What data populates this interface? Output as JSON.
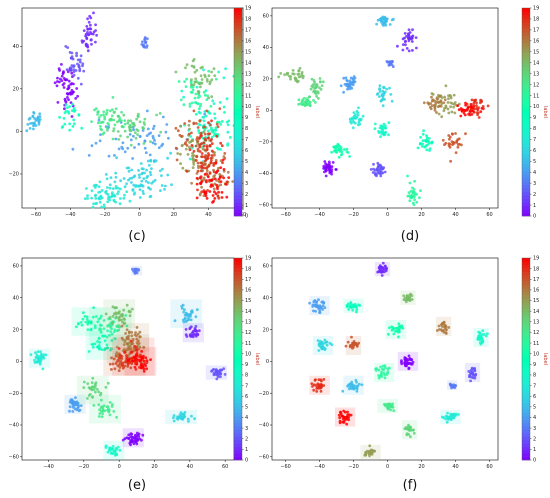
{
  "figure": {
    "colorbar_label": "label",
    "colormap": "rainbow",
    "colorbar_ticks": [
      0,
      1,
      2,
      3,
      4,
      5,
      6,
      7,
      8,
      9,
      10,
      11,
      12,
      13,
      14,
      15,
      16,
      17,
      18,
      19
    ],
    "captions": [
      "(c)",
      "(d)",
      "(e)",
      "(f)"
    ]
  },
  "chart_data": [
    {
      "type": "scatter",
      "panel": "c",
      "title": "",
      "xlabel": "",
      "ylabel": "",
      "xticks": [
        -60,
        -40,
        -20,
        0,
        20,
        40,
        60
      ],
      "yticks": [
        -20,
        0,
        20,
        40
      ],
      "xlim": [
        -68,
        60
      ],
      "ylim": [
        -36,
        58
      ],
      "colorbar": {
        "label": "label",
        "min": 0,
        "max": 19
      },
      "grid": false,
      "clusters": [
        {
          "label": 0,
          "x": -42,
          "y": 22,
          "sx": 3,
          "sy": 6,
          "n": 60
        },
        {
          "label": 1,
          "x": -30,
          "y": 45,
          "sx": 2,
          "sy": 4,
          "n": 40
        },
        {
          "label": 2,
          "x": -38,
          "y": 32,
          "sx": 3,
          "sy": 4,
          "n": 35
        },
        {
          "label": 3,
          "x": 3,
          "y": 42,
          "sx": 1.5,
          "sy": 1.5,
          "n": 15
        },
        {
          "label": 4,
          "x": 0,
          "y": -4,
          "sx": 14,
          "sy": 5,
          "n": 60
        },
        {
          "label": 5,
          "x": -60,
          "y": 5,
          "sx": 3,
          "sy": 2,
          "n": 30
        },
        {
          "label": 6,
          "x": 2,
          "y": -22,
          "sx": 8,
          "sy": 5,
          "n": 80
        },
        {
          "label": 7,
          "x": -20,
          "y": -30,
          "sx": 7,
          "sy": 3,
          "n": 70
        },
        {
          "label": 8,
          "x": 38,
          "y": 8,
          "sx": 8,
          "sy": 10,
          "n": 60
        },
        {
          "label": 9,
          "x": -40,
          "y": 7,
          "sx": 3,
          "sy": 3,
          "n": 25
        },
        {
          "label": 10,
          "x": 45,
          "y": 2,
          "sx": 6,
          "sy": 6,
          "n": 40
        },
        {
          "label": 11,
          "x": 32,
          "y": 18,
          "sx": 5,
          "sy": 5,
          "n": 40
        },
        {
          "label": 12,
          "x": -18,
          "y": 5,
          "sx": 6,
          "sy": 4,
          "n": 50
        },
        {
          "label": 13,
          "x": -5,
          "y": 3,
          "sx": 7,
          "sy": 4,
          "n": 50
        },
        {
          "label": 14,
          "x": 35,
          "y": 25,
          "sx": 5,
          "sy": 4,
          "n": 40
        },
        {
          "label": 15,
          "x": 30,
          "y": -10,
          "sx": 5,
          "sy": 6,
          "n": 45
        },
        {
          "label": 16,
          "x": 42,
          "y": -20,
          "sx": 5,
          "sy": 5,
          "n": 50
        },
        {
          "label": 17,
          "x": 35,
          "y": -5,
          "sx": 6,
          "sy": 8,
          "n": 60
        },
        {
          "label": 18,
          "x": 40,
          "y": -15,
          "sx": 6,
          "sy": 8,
          "n": 70
        },
        {
          "label": 19,
          "x": 42,
          "y": -25,
          "sx": 5,
          "sy": 5,
          "n": 50
        }
      ]
    },
    {
      "type": "scatter",
      "panel": "d",
      "title": "",
      "xlabel": "",
      "ylabel": "",
      "xticks": [
        -60,
        -40,
        -20,
        0,
        20,
        40,
        60
      ],
      "yticks": [
        -60,
        -40,
        -20,
        0,
        20,
        40,
        60
      ],
      "xlim": [
        -68,
        65
      ],
      "ylim": [
        -62,
        65
      ],
      "colorbar": {
        "label": "label",
        "min": 0,
        "max": 19
      },
      "grid": false,
      "clusters": [
        {
          "label": 0,
          "x": -35,
          "y": -37,
          "sx": 2,
          "sy": 2,
          "n": 40
        },
        {
          "label": 1,
          "x": 12,
          "y": 45,
          "sx": 2,
          "sy": 3,
          "n": 35
        },
        {
          "label": 2,
          "x": -5,
          "y": -38,
          "sx": 2,
          "sy": 2,
          "n": 35
        },
        {
          "label": 3,
          "x": 2,
          "y": 30,
          "sx": 1.5,
          "sy": 1,
          "n": 15
        },
        {
          "label": 4,
          "x": -22,
          "y": 18,
          "sx": 2,
          "sy": 3,
          "n": 35
        },
        {
          "label": 5,
          "x": -3,
          "y": 57,
          "sx": 2,
          "sy": 1.5,
          "n": 35
        },
        {
          "label": 6,
          "x": -2,
          "y": 10,
          "sx": 2,
          "sy": 3,
          "n": 30
        },
        {
          "label": 7,
          "x": -18,
          "y": -5,
          "sx": 2,
          "sy": 3,
          "n": 30
        },
        {
          "label": 8,
          "x": -2,
          "y": -12,
          "sx": 2,
          "sy": 3,
          "n": 30
        },
        {
          "label": 9,
          "x": 22,
          "y": -20,
          "sx": 2,
          "sy": 3,
          "n": 30
        },
        {
          "label": 10,
          "x": -28,
          "y": -25,
          "sx": 3,
          "sy": 2,
          "n": 30
        },
        {
          "label": 11,
          "x": 15,
          "y": -55,
          "sx": 2,
          "sy": 4,
          "n": 30
        },
        {
          "label": 12,
          "x": -48,
          "y": 5,
          "sx": 2,
          "sy": 2,
          "n": 30
        },
        {
          "label": 13,
          "x": -42,
          "y": 15,
          "sx": 2,
          "sy": 3,
          "n": 30
        },
        {
          "label": 14,
          "x": -55,
          "y": 22,
          "sx": 3,
          "sy": 2,
          "n": 30
        },
        {
          "label": 15,
          "x": 35,
          "y": 5,
          "sx": 4,
          "sy": 4,
          "n": 40
        },
        {
          "label": 16,
          "x": 28,
          "y": 5,
          "sx": 3,
          "sy": 3,
          "n": 30
        },
        {
          "label": 17,
          "x": 38,
          "y": -20,
          "sx": 3,
          "sy": 3,
          "n": 30
        },
        {
          "label": 18,
          "x": 53,
          "y": 2,
          "sx": 3,
          "sy": 3,
          "n": 35
        },
        {
          "label": 19,
          "x": 48,
          "y": 0,
          "sx": 3,
          "sy": 2,
          "n": 30
        }
      ]
    },
    {
      "type": "scatter",
      "panel": "e",
      "title": "",
      "xlabel": "",
      "ylabel": "",
      "xticks": [
        -40,
        -20,
        0,
        20,
        40,
        60
      ],
      "yticks": [
        -60,
        -40,
        -20,
        0,
        20,
        40,
        60
      ],
      "xlim": [
        -55,
        65
      ],
      "ylim": [
        -62,
        65
      ],
      "colorbar": {
        "label": "label",
        "min": 0,
        "max": 19
      },
      "grid": false,
      "clusters": [
        {
          "label": 0,
          "x": 8,
          "y": -48,
          "sx": 2,
          "sy": 2,
          "n": 40
        },
        {
          "label": 1,
          "x": 42,
          "y": 18,
          "sx": 2,
          "sy": 2,
          "n": 30
        },
        {
          "label": 2,
          "x": 55,
          "y": -7,
          "sx": 2,
          "sy": 1.5,
          "n": 30
        },
        {
          "label": 3,
          "x": 10,
          "y": 57,
          "sx": 1,
          "sy": 1,
          "n": 12
        },
        {
          "label": 4,
          "x": -25,
          "y": -27,
          "sx": 2,
          "sy": 2,
          "n": 35
        },
        {
          "label": 5,
          "x": 38,
          "y": 30,
          "sx": 3,
          "sy": 3,
          "n": 30
        },
        {
          "label": 6,
          "x": 35,
          "y": -35,
          "sx": 3,
          "sy": 1.5,
          "n": 30
        },
        {
          "label": 7,
          "x": -45,
          "y": 2,
          "sx": 2,
          "sy": 2,
          "n": 35
        },
        {
          "label": 8,
          "x": -3,
          "y": -56,
          "sx": 2,
          "sy": 2,
          "n": 25
        },
        {
          "label": 9,
          "x": -10,
          "y": 10,
          "sx": 3,
          "sy": 3,
          "n": 30
        },
        {
          "label": 10,
          "x": -18,
          "y": 25,
          "sx": 3,
          "sy": 3,
          "n": 30
        },
        {
          "label": 11,
          "x": -5,
          "y": 22,
          "sx": 4,
          "sy": 4,
          "n": 40
        },
        {
          "label": 12,
          "x": -8,
          "y": -30,
          "sx": 3,
          "sy": 3,
          "n": 30
        },
        {
          "label": 13,
          "x": -15,
          "y": -18,
          "sx": 3,
          "sy": 3,
          "n": 30
        },
        {
          "label": 14,
          "x": 0,
          "y": 30,
          "sx": 3,
          "sy": 3,
          "n": 35
        },
        {
          "label": 15,
          "x": 5,
          "y": 8,
          "sx": 4,
          "sy": 3,
          "n": 40
        },
        {
          "label": 16,
          "x": 8,
          "y": 15,
          "sx": 3,
          "sy": 3,
          "n": 30
        },
        {
          "label": 17,
          "x": 3,
          "y": 0,
          "sx": 4,
          "sy": 3,
          "n": 45
        },
        {
          "label": 18,
          "x": 8,
          "y": 3,
          "sx": 4,
          "sy": 4,
          "n": 45
        },
        {
          "label": 19,
          "x": 12,
          "y": 0,
          "sx": 3,
          "sy": 3,
          "n": 35
        }
      ]
    },
    {
      "type": "scatter",
      "panel": "f",
      "title": "",
      "xlabel": "",
      "ylabel": "",
      "xticks": [
        -60,
        -40,
        -20,
        0,
        20,
        40,
        60
      ],
      "yticks": [
        -60,
        -40,
        -20,
        0,
        20,
        40,
        60
      ],
      "xlim": [
        -68,
        65
      ],
      "ylim": [
        -62,
        65
      ],
      "colorbar": {
        "label": "label",
        "min": 0,
        "max": 19
      },
      "grid": false,
      "clusters": [
        {
          "label": 0,
          "x": 12,
          "y": 0,
          "sx": 2,
          "sy": 2,
          "n": 35
        },
        {
          "label": 1,
          "x": -3,
          "y": 58,
          "sx": 1.5,
          "sy": 1.5,
          "n": 30
        },
        {
          "label": 2,
          "x": 50,
          "y": -7,
          "sx": 1.5,
          "sy": 2,
          "n": 25
        },
        {
          "label": 3,
          "x": 38,
          "y": -15,
          "sx": 1,
          "sy": 1,
          "n": 12
        },
        {
          "label": 4,
          "x": -40,
          "y": 35,
          "sx": 2,
          "sy": 2,
          "n": 35
        },
        {
          "label": 5,
          "x": -20,
          "y": -15,
          "sx": 2,
          "sy": 2,
          "n": 30
        },
        {
          "label": 6,
          "x": -38,
          "y": 10,
          "sx": 2,
          "sy": 2,
          "n": 30
        },
        {
          "label": 7,
          "x": 37,
          "y": -35,
          "sx": 2,
          "sy": 1.5,
          "n": 30
        },
        {
          "label": 8,
          "x": 55,
          "y": 15,
          "sx": 1.5,
          "sy": 2,
          "n": 25
        },
        {
          "label": 9,
          "x": -20,
          "y": 35,
          "sx": 2,
          "sy": 1.5,
          "n": 25
        },
        {
          "label": 10,
          "x": 5,
          "y": 20,
          "sx": 2,
          "sy": 2,
          "n": 30
        },
        {
          "label": 11,
          "x": -2,
          "y": -7,
          "sx": 2,
          "sy": 2,
          "n": 25
        },
        {
          "label": 12,
          "x": 0,
          "y": -28,
          "sx": 2,
          "sy": 1.5,
          "n": 25
        },
        {
          "label": 13,
          "x": 13,
          "y": -43,
          "sx": 1.5,
          "sy": 2,
          "n": 25
        },
        {
          "label": 14,
          "x": 12,
          "y": 40,
          "sx": 1.5,
          "sy": 1.5,
          "n": 25
        },
        {
          "label": 15,
          "x": -10,
          "y": -57,
          "sx": 2,
          "sy": 1.5,
          "n": 25
        },
        {
          "label": 16,
          "x": 33,
          "y": 22,
          "sx": 1.5,
          "sy": 2,
          "n": 25
        },
        {
          "label": 17,
          "x": -20,
          "y": 10,
          "sx": 1.5,
          "sy": 2,
          "n": 25
        },
        {
          "label": 18,
          "x": -40,
          "y": -15,
          "sx": 2,
          "sy": 2,
          "n": 30
        },
        {
          "label": 19,
          "x": -25,
          "y": -35,
          "sx": 2,
          "sy": 2,
          "n": 30
        }
      ]
    }
  ]
}
